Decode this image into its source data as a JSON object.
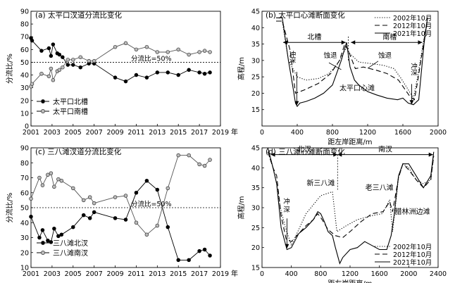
{
  "chart_data": [
    {
      "type": "line",
      "title": "(a) 太平口汊道分流比变化",
      "ylabel": "分流比/%",
      "xlabel": "年",
      "xlim": [
        2001,
        2019
      ],
      "ylim": [
        0,
        90
      ],
      "xticks": [
        2001,
        2003,
        2005,
        2007,
        2009,
        2011,
        2013,
        2015,
        2017,
        2019
      ],
      "yticks": [
        0,
        10,
        20,
        30,
        40,
        50,
        60,
        70,
        80,
        90
      ],
      "reference": {
        "y": 50,
        "label": "分流比=50%"
      },
      "legend_position": "bottom-left",
      "series": [
        {
          "name": "太平口北槽",
          "marker": "filled",
          "x": [
            2001.0,
            2001.1,
            2002.0,
            2002.7,
            2002.9,
            2003.1,
            2003.5,
            2003.7,
            2004.0,
            2004.5,
            2005.0,
            2005.7,
            2006.5,
            2007.0,
            2009.0,
            2010.0,
            2011.0,
            2012.0,
            2013.0,
            2014.0,
            2015.0,
            2016.0,
            2017.0,
            2017.5,
            2018.0
          ],
          "y": [
            69,
            67,
            59,
            61,
            55,
            64,
            57,
            56,
            54,
            48,
            48,
            46,
            49,
            49,
            38,
            35,
            40,
            38,
            42,
            42,
            40,
            44,
            42,
            41,
            42
          ]
        },
        {
          "name": "太平口南槽",
          "marker": "open",
          "x": [
            2001.0,
            2001.1,
            2002.0,
            2002.7,
            2002.9,
            2003.1,
            2003.5,
            2003.7,
            2004.0,
            2004.5,
            2005.0,
            2005.7,
            2006.5,
            2007.0,
            2009.0,
            2010.0,
            2011.0,
            2012.0,
            2013.0,
            2014.0,
            2015.0,
            2016.0,
            2017.0,
            2017.5,
            2018.0
          ],
          "y": [
            31,
            33,
            41,
            39,
            45,
            36,
            43,
            44,
            46,
            52,
            52,
            54,
            51,
            51,
            62,
            65,
            60,
            62,
            58,
            58,
            60,
            56,
            58,
            59,
            58
          ]
        }
      ]
    },
    {
      "type": "line",
      "title": "(b) 太平口心滩断面变化",
      "ylabel": "高程/m",
      "xlabel": "距左岸距离/m",
      "xlim": [
        0,
        2000
      ],
      "ylim": [
        10,
        45
      ],
      "xticks": [
        0,
        400,
        800,
        1200,
        1600,
        2000
      ],
      "yticks": [
        15,
        20,
        25,
        30,
        35,
        40,
        45
      ],
      "legend_position": "top-right",
      "annotations": [
        "北槽",
        "南槽",
        "冲深",
        "蚀退",
        "蚀退",
        "太平口心滩",
        "冲深"
      ],
      "series": [
        {
          "name": "2002年10月",
          "style": "dotted",
          "x": [
            160,
            230,
            300,
            400,
            500,
            640,
            760,
            860,
            920,
            960,
            1000,
            1100,
            1250,
            1380,
            1500,
            1580,
            1650,
            1720,
            1760,
            1880
          ],
          "y": [
            42,
            42,
            30,
            25,
            24,
            24.5,
            26,
            29,
            32,
            34,
            32,
            29.5,
            29,
            28.5,
            27.5,
            24.5,
            21.5,
            18.5,
            24,
            43
          ]
        },
        {
          "name": "2012年10月",
          "style": "dashed",
          "x": [
            160,
            230,
            320,
            380,
            480,
            640,
            780,
            880,
            940,
            980,
            1060,
            1150,
            1300,
            1420,
            1550,
            1680,
            1730,
            1770,
            1880
          ],
          "y": [
            42,
            42,
            33,
            20,
            21,
            23,
            26,
            30,
            35,
            33,
            27.5,
            28,
            27,
            26,
            24,
            19,
            18,
            24,
            43
          ]
        },
        {
          "name": "2021年10月",
          "style": "solid",
          "x": [
            160,
            230,
            300,
            350,
            380,
            400,
            430,
            500,
            600,
            700,
            800,
            900,
            960,
            1000,
            1050,
            1100,
            1200,
            1300,
            1420,
            1540,
            1600,
            1660,
            1720,
            1780,
            1840,
            1880
          ],
          "y": [
            43,
            43,
            30,
            22,
            17,
            16,
            17,
            17.5,
            18.5,
            20,
            22.5,
            30,
            35.5,
            28,
            24,
            22.5,
            20.5,
            19.5,
            18.5,
            18,
            18.5,
            17,
            16.5,
            18,
            35,
            43
          ]
        }
      ]
    },
    {
      "type": "line",
      "title": "(c) 三八滩汊道分流比变化",
      "ylabel": "分流比/%",
      "xlabel": "年",
      "xlim": [
        2001,
        2019
      ],
      "ylim": [
        10,
        90
      ],
      "xticks": [
        2001,
        2003,
        2005,
        2007,
        2009,
        2011,
        2013,
        2015,
        2017,
        2019
      ],
      "yticks": [
        10,
        20,
        30,
        40,
        50,
        60,
        70,
        80,
        90
      ],
      "reference": {
        "y": 50,
        "label": "分流比=50%"
      },
      "legend_position": "bottom-left",
      "series": [
        {
          "name": "三八滩北汊",
          "marker": "filled",
          "x": [
            2001.0,
            2001.8,
            2002.1,
            2002.6,
            2002.9,
            2003.2,
            2003.6,
            2003.9,
            2005.0,
            2006.0,
            2006.6,
            2007.0,
            2009.0,
            2010.0,
            2011.0,
            2012.0,
            2013.0,
            2014.0,
            2015.0,
            2016.0,
            2017.0,
            2017.5,
            2018.0
          ],
          "y": [
            44,
            30,
            35,
            28,
            27,
            36,
            31,
            32,
            37,
            45,
            43,
            47,
            43,
            42,
            60,
            68,
            62,
            37,
            15,
            15,
            21,
            22,
            18
          ]
        },
        {
          "name": "三八滩南汊",
          "marker": "open",
          "x": [
            2001.0,
            2001.8,
            2002.1,
            2002.6,
            2002.9,
            2003.2,
            2003.6,
            2003.9,
            2005.0,
            2006.0,
            2006.6,
            2007.0,
            2009.0,
            2010.0,
            2011.0,
            2012.0,
            2013.0,
            2014.0,
            2015.0,
            2016.0,
            2017.0,
            2017.5,
            2018.0
          ],
          "y": [
            56,
            70,
            65,
            72,
            73,
            64,
            69,
            68,
            63,
            55,
            57,
            53,
            57,
            58,
            40,
            32,
            38,
            63,
            85,
            85,
            79,
            78,
            82
          ]
        }
      ]
    },
    {
      "type": "line",
      "title": "(d) 三八滩心滩断面变化",
      "ylabel": "高程/m",
      "xlabel": "距左岸距离/m",
      "xlim": [
        0,
        2400
      ],
      "ylim": [
        15,
        45
      ],
      "xticks": [
        0,
        400,
        800,
        1200,
        1600,
        2000,
        2400
      ],
      "yticks": [
        15,
        20,
        25,
        30,
        35,
        40,
        45
      ],
      "legend_position": "bottom-right",
      "annotations": [
        "北汊",
        "南汊",
        "冲深",
        "新三八滩",
        "老三八滩",
        "腊林洲边滩"
      ],
      "series": [
        {
          "name": "2002年10月",
          "style": "dotted",
          "x": [
            80,
            150,
            200,
            250,
            320,
            400,
            600,
            800,
            960,
            1020,
            1150,
            1300,
            1500,
            1640,
            1740,
            1780,
            1860,
            1920,
            2000,
            2100,
            2200,
            2300,
            2340
          ],
          "y": [
            44,
            40,
            36,
            30,
            25,
            20.5,
            28.5,
            33,
            34,
            24,
            25.5,
            27,
            28,
            28.5,
            32,
            24,
            37.5,
            41,
            40,
            37,
            36,
            37,
            43
          ]
        },
        {
          "name": "2012年10月",
          "style": "dashed",
          "x": [
            80,
            150,
            200,
            260,
            330,
            400,
            600,
            700,
            760,
            820,
            900,
            1000,
            1100,
            1200,
            1350,
            1500,
            1650,
            1740,
            1780,
            1860,
            1920,
            2000,
            2100,
            2200,
            2300,
            2340
          ],
          "y": [
            44,
            40,
            38,
            28,
            22,
            21.5,
            25.5,
            27,
            28.5,
            27,
            24.5,
            23,
            22.5,
            24,
            26.5,
            28.5,
            29,
            31.5,
            29,
            37.5,
            41,
            39.5,
            37,
            35,
            37,
            43
          ]
        },
        {
          "name": "2021年10月",
          "style": "solid",
          "x": [
            80,
            150,
            200,
            260,
            340,
            400,
            500,
            600,
            700,
            760,
            800,
            850,
            900,
            960,
            1000,
            1060,
            1100,
            1200,
            1300,
            1400,
            1500,
            1600,
            1700,
            1760,
            1800,
            1860,
            1920,
            2000,
            2100,
            2200,
            2300,
            2340
          ],
          "y": [
            45,
            40,
            36,
            25,
            19.5,
            20,
            23.5,
            25,
            27,
            29,
            28.5,
            26.5,
            24,
            23,
            20,
            16,
            17.5,
            19.5,
            20,
            21.5,
            20.5,
            19.5,
            19.5,
            23,
            28,
            38,
            41,
            41,
            38,
            35,
            38,
            44
          ]
        }
      ]
    }
  ],
  "layout_labels": {
    "dummy": ""
  }
}
